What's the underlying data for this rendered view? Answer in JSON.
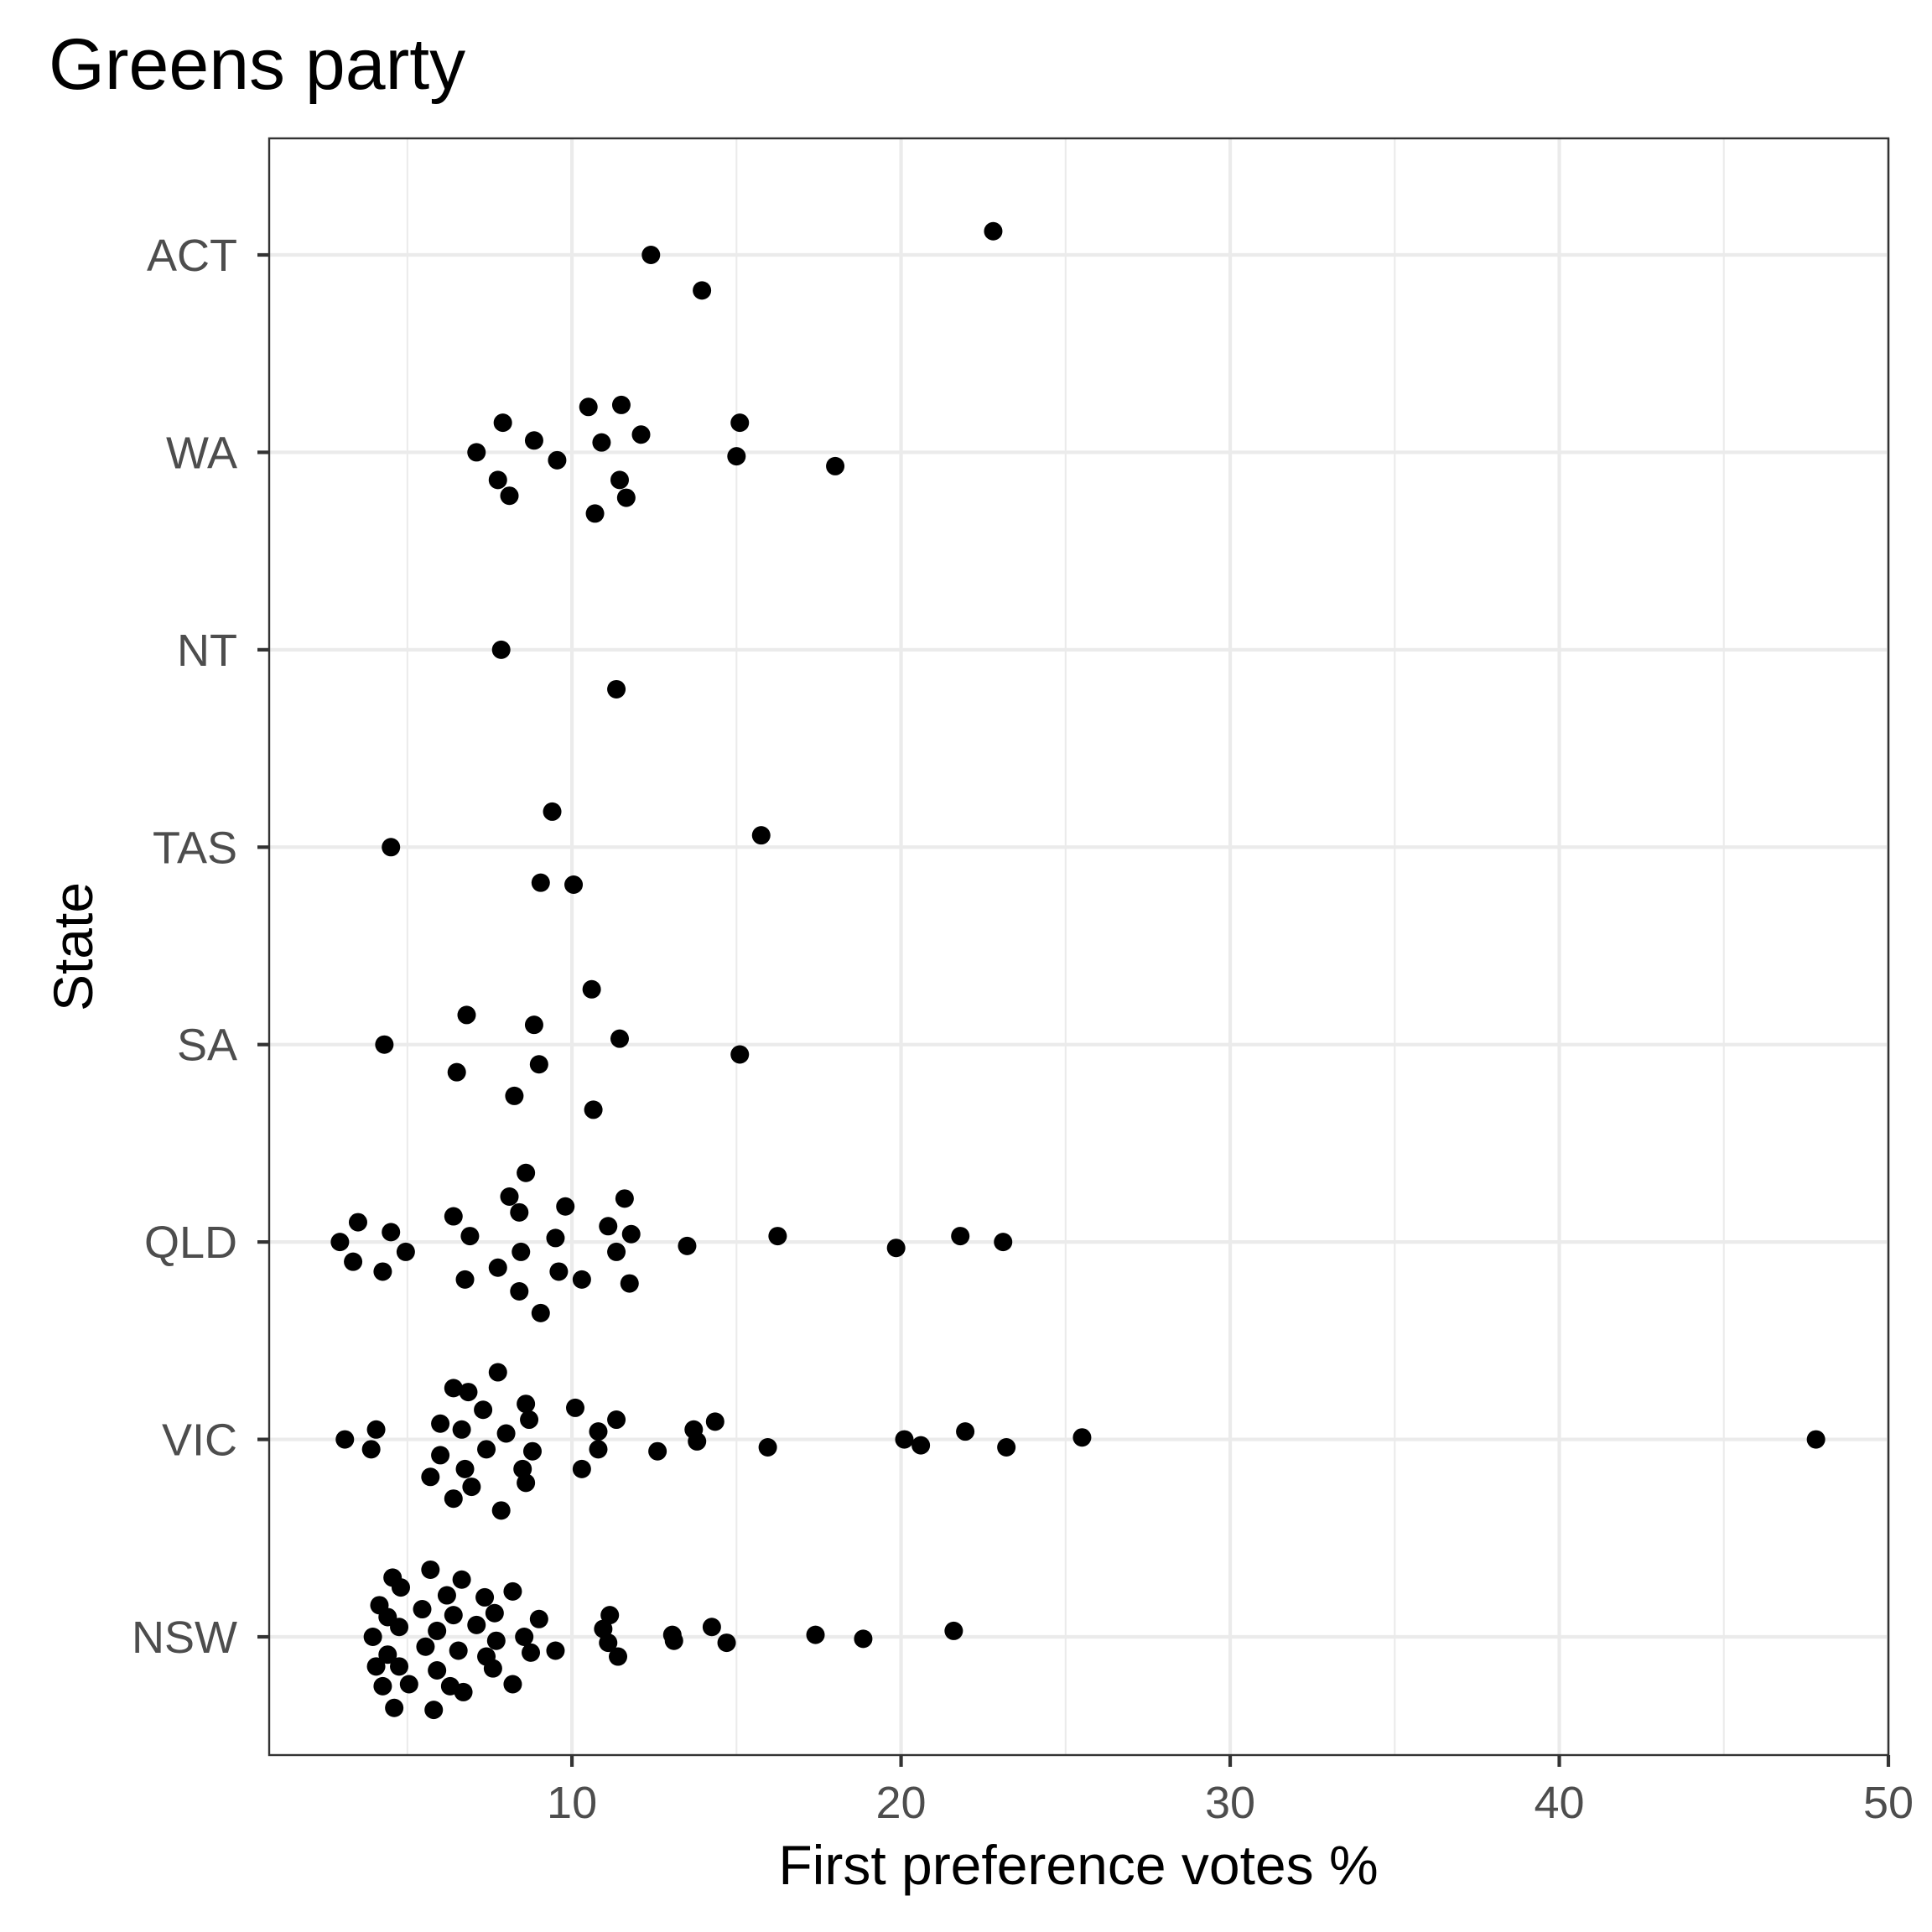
{
  "chart_data": {
    "type": "scatter",
    "title": "Greens party",
    "xlabel": "First preference votes %",
    "ylabel": "State",
    "xlim": [
      0.8,
      50
    ],
    "x_ticks": [
      10,
      20,
      30,
      40,
      50
    ],
    "x_minor_ticks": [
      5,
      15,
      25,
      35,
      45
    ],
    "grid": true,
    "categories": [
      "NSW",
      "VIC",
      "QLD",
      "SA",
      "TAS",
      "NT",
      "WA",
      "ACT"
    ],
    "series": [
      {
        "category": "ACT",
        "points": [
          {
            "x": 22.8,
            "jitter": 0.12
          },
          {
            "x": 12.4,
            "jitter": 0.0
          },
          {
            "x": 13.95,
            "jitter": -0.18
          }
        ]
      },
      {
        "category": "WA",
        "points": [
          {
            "x": 10.5,
            "jitter": 0.23
          },
          {
            "x": 11.5,
            "jitter": 0.24
          },
          {
            "x": 15.1,
            "jitter": 0.15
          },
          {
            "x": 7.9,
            "jitter": 0.15
          },
          {
            "x": 12.1,
            "jitter": 0.09
          },
          {
            "x": 8.85,
            "jitter": 0.06
          },
          {
            "x": 10.9,
            "jitter": 0.05
          },
          {
            "x": 7.1,
            "jitter": 0.0
          },
          {
            "x": 15.0,
            "jitter": -0.02
          },
          {
            "x": 9.55,
            "jitter": -0.04
          },
          {
            "x": 18.0,
            "jitter": -0.07
          },
          {
            "x": 7.75,
            "jitter": -0.14
          },
          {
            "x": 11.45,
            "jitter": -0.14
          },
          {
            "x": 8.1,
            "jitter": -0.22
          },
          {
            "x": 11.65,
            "jitter": -0.23
          },
          {
            "x": 10.7,
            "jitter": -0.31
          }
        ]
      },
      {
        "category": "NT",
        "points": [
          {
            "x": 7.85,
            "jitter": 0.0
          },
          {
            "x": 11.35,
            "jitter": -0.2
          }
        ]
      },
      {
        "category": "TAS",
        "points": [
          {
            "x": 9.4,
            "jitter": 0.18
          },
          {
            "x": 15.75,
            "jitter": 0.06
          },
          {
            "x": 4.5,
            "jitter": 0.0
          },
          {
            "x": 9.05,
            "jitter": -0.18
          },
          {
            "x": 10.05,
            "jitter": -0.19
          }
        ]
      },
      {
        "category": "SA",
        "points": [
          {
            "x": 10.6,
            "jitter": 0.28
          },
          {
            "x": 6.8,
            "jitter": 0.15
          },
          {
            "x": 8.85,
            "jitter": 0.1
          },
          {
            "x": 11.45,
            "jitter": 0.03
          },
          {
            "x": 4.3,
            "jitter": 0.0
          },
          {
            "x": 15.1,
            "jitter": -0.05
          },
          {
            "x": 9.0,
            "jitter": -0.1
          },
          {
            "x": 6.5,
            "jitter": -0.14
          },
          {
            "x": 8.25,
            "jitter": -0.26
          },
          {
            "x": 10.65,
            "jitter": -0.33
          }
        ]
      },
      {
        "category": "QLD",
        "points": [
          {
            "x": 8.6,
            "jitter": 0.35
          },
          {
            "x": 8.1,
            "jitter": 0.23
          },
          {
            "x": 11.6,
            "jitter": 0.22
          },
          {
            "x": 9.8,
            "jitter": 0.18
          },
          {
            "x": 8.4,
            "jitter": 0.15
          },
          {
            "x": 6.4,
            "jitter": 0.13
          },
          {
            "x": 3.5,
            "jitter": 0.1
          },
          {
            "x": 11.1,
            "jitter": 0.08
          },
          {
            "x": 4.5,
            "jitter": 0.05
          },
          {
            "x": 11.8,
            "jitter": 0.04
          },
          {
            "x": 16.25,
            "jitter": 0.03
          },
          {
            "x": 21.8,
            "jitter": 0.03
          },
          {
            "x": 6.9,
            "jitter": 0.03
          },
          {
            "x": 9.5,
            "jitter": 0.02
          },
          {
            "x": 2.95,
            "jitter": 0.0
          },
          {
            "x": 23.1,
            "jitter": 0.0
          },
          {
            "x": 13.5,
            "jitter": -0.02
          },
          {
            "x": 19.85,
            "jitter": -0.03
          },
          {
            "x": 4.95,
            "jitter": -0.05
          },
          {
            "x": 8.45,
            "jitter": -0.05
          },
          {
            "x": 11.35,
            "jitter": -0.05
          },
          {
            "x": 3.35,
            "jitter": -0.1
          },
          {
            "x": 7.75,
            "jitter": -0.13
          },
          {
            "x": 4.25,
            "jitter": -0.15
          },
          {
            "x": 9.6,
            "jitter": -0.15
          },
          {
            "x": 6.75,
            "jitter": -0.19
          },
          {
            "x": 10.3,
            "jitter": -0.19
          },
          {
            "x": 11.75,
            "jitter": -0.21
          },
          {
            "x": 8.4,
            "jitter": -0.25
          },
          {
            "x": 9.05,
            "jitter": -0.36
          }
        ]
      },
      {
        "category": "VIC",
        "points": [
          {
            "x": 7.75,
            "jitter": 0.34
          },
          {
            "x": 6.4,
            "jitter": 0.26
          },
          {
            "x": 6.85,
            "jitter": 0.24
          },
          {
            "x": 8.6,
            "jitter": 0.18
          },
          {
            "x": 10.1,
            "jitter": 0.16
          },
          {
            "x": 7.3,
            "jitter": 0.15
          },
          {
            "x": 14.35,
            "jitter": 0.09
          },
          {
            "x": 11.35,
            "jitter": 0.1
          },
          {
            "x": 8.7,
            "jitter": 0.1
          },
          {
            "x": 6.0,
            "jitter": 0.08
          },
          {
            "x": 13.7,
            "jitter": 0.05
          },
          {
            "x": 4.05,
            "jitter": 0.05
          },
          {
            "x": 6.65,
            "jitter": 0.05
          },
          {
            "x": 10.8,
            "jitter": 0.04
          },
          {
            "x": 21.95,
            "jitter": 0.04
          },
          {
            "x": 8.0,
            "jitter": 0.03
          },
          {
            "x": 25.5,
            "jitter": 0.01
          },
          {
            "x": 20.1,
            "jitter": 0.0
          },
          {
            "x": 3.1,
            "jitter": 0.0
          },
          {
            "x": 47.8,
            "jitter": 0.0
          },
          {
            "x": 13.8,
            "jitter": -0.01
          },
          {
            "x": 20.6,
            "jitter": -0.03
          },
          {
            "x": 23.2,
            "jitter": -0.04
          },
          {
            "x": 15.95,
            "jitter": -0.04
          },
          {
            "x": 7.4,
            "jitter": -0.05
          },
          {
            "x": 3.9,
            "jitter": -0.05
          },
          {
            "x": 10.8,
            "jitter": -0.05
          },
          {
            "x": 12.6,
            "jitter": -0.06
          },
          {
            "x": 8.8,
            "jitter": -0.06
          },
          {
            "x": 6.0,
            "jitter": -0.08
          },
          {
            "x": 6.75,
            "jitter": -0.15
          },
          {
            "x": 8.5,
            "jitter": -0.15
          },
          {
            "x": 10.3,
            "jitter": -0.15
          },
          {
            "x": 5.7,
            "jitter": -0.19
          },
          {
            "x": 8.6,
            "jitter": -0.22
          },
          {
            "x": 6.95,
            "jitter": -0.24
          },
          {
            "x": 6.4,
            "jitter": -0.3
          },
          {
            "x": 7.85,
            "jitter": -0.36
          }
        ]
      },
      {
        "category": "NSW",
        "points": [
          {
            "x": 5.7,
            "jitter": 0.34
          },
          {
            "x": 4.55,
            "jitter": 0.3
          },
          {
            "x": 6.65,
            "jitter": 0.29
          },
          {
            "x": 4.8,
            "jitter": 0.25
          },
          {
            "x": 8.2,
            "jitter": 0.23
          },
          {
            "x": 6.2,
            "jitter": 0.21
          },
          {
            "x": 7.35,
            "jitter": 0.2
          },
          {
            "x": 4.15,
            "jitter": 0.16
          },
          {
            "x": 5.45,
            "jitter": 0.14
          },
          {
            "x": 7.65,
            "jitter": 0.12
          },
          {
            "x": 6.4,
            "jitter": 0.11
          },
          {
            "x": 4.4,
            "jitter": 0.1
          },
          {
            "x": 11.15,
            "jitter": 0.11
          },
          {
            "x": 9.0,
            "jitter": 0.09
          },
          {
            "x": 7.1,
            "jitter": 0.06
          },
          {
            "x": 4.75,
            "jitter": 0.05
          },
          {
            "x": 14.25,
            "jitter": 0.05
          },
          {
            "x": 10.95,
            "jitter": 0.04
          },
          {
            "x": 21.6,
            "jitter": 0.03
          },
          {
            "x": 5.9,
            "jitter": 0.03
          },
          {
            "x": 13.05,
            "jitter": 0.01
          },
          {
            "x": 17.4,
            "jitter": 0.01
          },
          {
            "x": 3.95,
            "jitter": 0.0
          },
          {
            "x": 8.55,
            "jitter": 0.0
          },
          {
            "x": 18.85,
            "jitter": -0.01
          },
          {
            "x": 7.7,
            "jitter": -0.02
          },
          {
            "x": 13.1,
            "jitter": -0.02
          },
          {
            "x": 11.1,
            "jitter": -0.03
          },
          {
            "x": 14.7,
            "jitter": -0.03
          },
          {
            "x": 5.55,
            "jitter": -0.05
          },
          {
            "x": 6.55,
            "jitter": -0.07
          },
          {
            "x": 9.5,
            "jitter": -0.07
          },
          {
            "x": 8.75,
            "jitter": -0.08
          },
          {
            "x": 4.4,
            "jitter": -0.09
          },
          {
            "x": 7.4,
            "jitter": -0.1
          },
          {
            "x": 11.4,
            "jitter": -0.1
          },
          {
            "x": 4.05,
            "jitter": -0.15
          },
          {
            "x": 4.75,
            "jitter": -0.15
          },
          {
            "x": 7.6,
            "jitter": -0.16
          },
          {
            "x": 5.9,
            "jitter": -0.17
          },
          {
            "x": 4.25,
            "jitter": -0.25
          },
          {
            "x": 5.05,
            "jitter": -0.24
          },
          {
            "x": 8.2,
            "jitter": -0.24
          },
          {
            "x": 6.3,
            "jitter": -0.25
          },
          {
            "x": 6.7,
            "jitter": -0.28
          },
          {
            "x": 4.6,
            "jitter": -0.36
          },
          {
            "x": 5.8,
            "jitter": -0.37
          }
        ]
      }
    ]
  }
}
